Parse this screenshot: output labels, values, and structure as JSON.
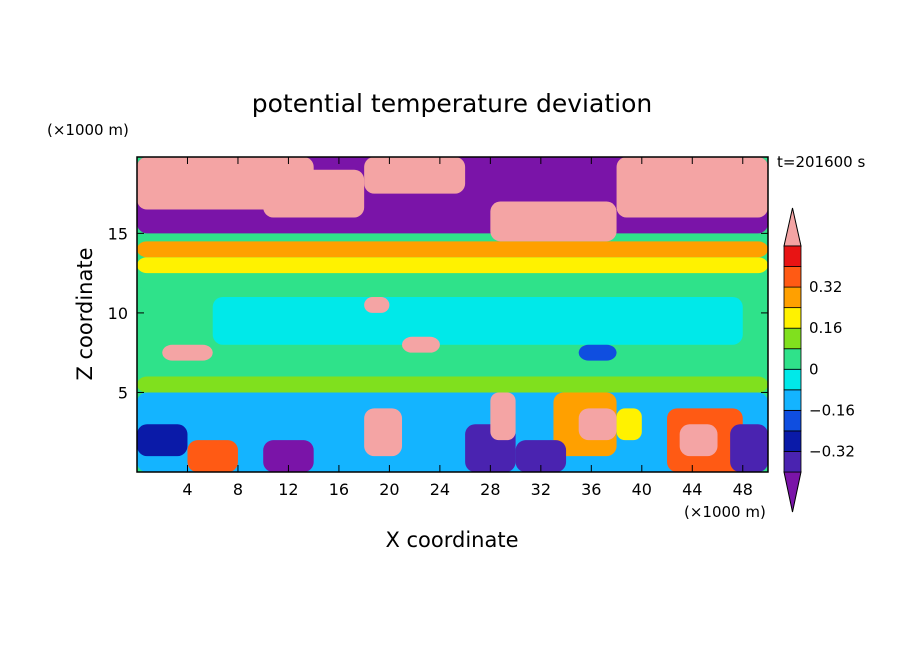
{
  "chart_data": {
    "type": "heatmap",
    "title": "potential temperature deviation",
    "xlabel": "X coordinate",
    "ylabel": "Z coordinate",
    "x_unit": "(×1000 m)",
    "y_unit": "(×1000 m)",
    "time_label": "t=201600 s",
    "xlim": [
      0,
      50
    ],
    "ylim": [
      0,
      19.8
    ],
    "x_ticks": [
      4,
      8,
      12,
      16,
      20,
      24,
      28,
      32,
      36,
      40,
      44,
      48
    ],
    "y_ticks": [
      5,
      10,
      15
    ],
    "colorbar": {
      "levels": [
        -0.4,
        -0.32,
        -0.24,
        -0.16,
        -0.08,
        0,
        0.08,
        0.16,
        0.24,
        0.32,
        0.4
      ],
      "labels": [
        "-0.32",
        "-0.16",
        "0",
        "0.16",
        "0.32"
      ],
      "label_values": [
        -0.32,
        -0.16,
        0,
        0.16,
        0.32
      ],
      "colors": [
        "#7a14a8",
        "#4a23b0",
        "#0a1aa8",
        "#0f4ee0",
        "#14b4ff",
        "#00e9e9",
        "#2fe28a",
        "#80e01e",
        "#fff200",
        "#ffa000",
        "#ff5a14",
        "#e81414",
        "#f4a4a4"
      ],
      "extend": "both"
    },
    "regions": [
      {
        "value": 0.02,
        "x": [
          0,
          50
        ],
        "y": [
          6,
          11.5
        ]
      },
      {
        "value": -0.05,
        "x": [
          6,
          48
        ],
        "y": [
          8,
          11
        ]
      },
      {
        "value": 0.1,
        "x": [
          0,
          50
        ],
        "y": [
          5,
          6
        ]
      },
      {
        "value": 0.06,
        "x": [
          0,
          50
        ],
        "y": [
          11.5,
          12.5
        ]
      },
      {
        "value": 0.2,
        "x": [
          0,
          50
        ],
        "y": [
          12.5,
          13.5
        ]
      },
      {
        "value": 0.28,
        "x": [
          0,
          50
        ],
        "y": [
          13.5,
          14.5
        ]
      },
      {
        "value": -0.45,
        "x": [
          0,
          50
        ],
        "y": [
          15,
          19.8
        ]
      },
      {
        "value": 0.45,
        "x": [
          0,
          14
        ],
        "y": [
          16.5,
          19.8
        ]
      },
      {
        "value": 0.45,
        "x": [
          10,
          18
        ],
        "y": [
          16,
          19
        ]
      },
      {
        "value": 0.45,
        "x": [
          18,
          26
        ],
        "y": [
          17.5,
          19.8
        ]
      },
      {
        "value": 0.45,
        "x": [
          28,
          38
        ],
        "y": [
          14.5,
          17
        ]
      },
      {
        "value": 0.45,
        "x": [
          38,
          50
        ],
        "y": [
          16,
          19.8
        ]
      },
      {
        "value": -0.1,
        "x": [
          0,
          50
        ],
        "y": [
          0,
          5
        ]
      },
      {
        "value": -0.3,
        "x": [
          0,
          4
        ],
        "y": [
          1,
          3
        ]
      },
      {
        "value": 0.35,
        "x": [
          4,
          8
        ],
        "y": [
          0,
          2
        ]
      },
      {
        "value": -0.42,
        "x": [
          10,
          14
        ],
        "y": [
          0,
          2
        ]
      },
      {
        "value": 0.4,
        "x": [
          18,
          21
        ],
        "y": [
          1,
          4
        ]
      },
      {
        "value": -0.38,
        "x": [
          26,
          30
        ],
        "y": [
          0,
          3
        ]
      },
      {
        "value": 0.45,
        "x": [
          28,
          30
        ],
        "y": [
          2,
          5
        ]
      },
      {
        "value": 0.3,
        "x": [
          33,
          38
        ],
        "y": [
          1,
          5
        ]
      },
      {
        "value": 0.45,
        "x": [
          35,
          38
        ],
        "y": [
          2,
          4
        ]
      },
      {
        "value": -0.4,
        "x": [
          30,
          34
        ],
        "y": [
          0,
          2
        ]
      },
      {
        "value": 0.2,
        "x": [
          38,
          40
        ],
        "y": [
          2,
          4
        ]
      },
      {
        "value": 0.38,
        "x": [
          42,
          48
        ],
        "y": [
          0,
          4
        ]
      },
      {
        "value": 0.45,
        "x": [
          43,
          46
        ],
        "y": [
          1,
          3
        ]
      },
      {
        "value": -0.35,
        "x": [
          47,
          50
        ],
        "y": [
          0,
          3
        ]
      },
      {
        "value": 0.45,
        "x": [
          2,
          6
        ],
        "y": [
          7,
          8
        ]
      },
      {
        "value": 0.45,
        "x": [
          18,
          20
        ],
        "y": [
          10,
          11
        ]
      },
      {
        "value": 0.45,
        "x": [
          21,
          24
        ],
        "y": [
          7.5,
          8.5
        ]
      },
      {
        "value": -0.2,
        "x": [
          35,
          38
        ],
        "y": [
          7,
          8
        ]
      }
    ]
  }
}
